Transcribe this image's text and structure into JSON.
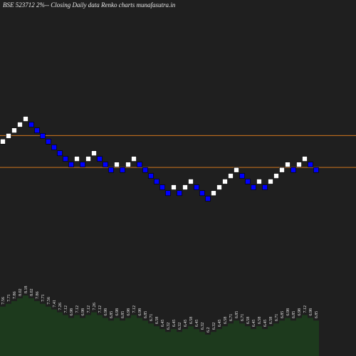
{
  "chart_data": {
    "type": "renko",
    "title": "BSE 523712  2%--  Closing Daily data  Renko  charts munafasutra.in",
    "values": [
      7.56,
      7.71,
      7.86,
      8.02,
      8.18,
      8.02,
      7.86,
      7.71,
      7.56,
      7.41,
      7.26,
      7.12,
      6.98,
      7.12,
      6.98,
      7.12,
      7.26,
      7.12,
      6.98,
      6.85,
      6.98,
      6.85,
      6.98,
      7.12,
      6.98,
      6.85,
      6.71,
      6.58,
      6.45,
      6.32,
      6.45,
      6.32,
      6.45,
      6.58,
      6.45,
      6.32,
      6.2,
      6.32,
      6.45,
      6.58,
      6.71,
      6.85,
      6.71,
      6.58,
      6.45,
      6.58,
      6.45,
      6.58,
      6.71,
      6.85,
      6.98,
      6.85,
      6.98,
      7.12,
      6.98,
      6.85
    ],
    "ylim": [
      6.2,
      8.18
    ],
    "log_scale": true,
    "up_color": "#ffffff",
    "down_color": "#0000ff",
    "hlines": [
      7.72,
      6.91
    ],
    "hline_color": "#d2781e",
    "area_color": "#1d3a1d"
  }
}
